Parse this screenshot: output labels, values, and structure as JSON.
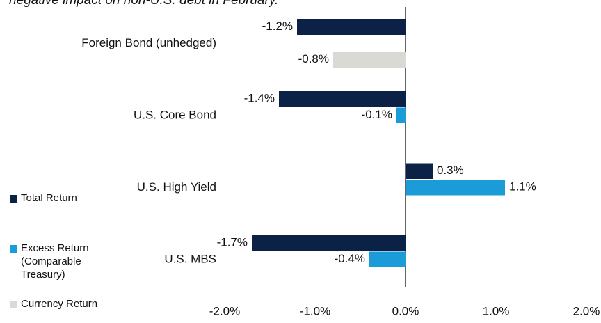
{
  "chart_data": {
    "type": "hbar",
    "title": "negative impact on non-U.S. debt in February.",
    "categories": [
      "Foreign Bond (unhedged)",
      "U.S. Core Bond",
      "U.S. High Yield",
      "U.S. MBS"
    ],
    "series": [
      {
        "name": "Total Return",
        "color": "#0c2146",
        "values": [
          -1.2,
          -1.4,
          0.3,
          -1.7
        ],
        "value_labels": [
          "-1.2%",
          "-1.4%",
          "0.3%",
          "-1.7%"
        ]
      },
      {
        "name": "Excess Return (Comparable Treasury)",
        "color": "#1b9bd8",
        "values": [
          null,
          -0.1,
          1.1,
          -0.4
        ],
        "value_labels": [
          null,
          "-0.1%",
          "1.1%",
          "-0.4%"
        ]
      },
      {
        "name": "Currency Return",
        "color": "#d9d9d6",
        "values": [
          -0.8,
          null,
          null,
          null
        ],
        "value_labels": [
          "-0.8%",
          null,
          null,
          null
        ]
      }
    ],
    "xlim": [
      -2,
      2
    ],
    "xticks": [
      {
        "value": -2,
        "label": "-2.0%"
      },
      {
        "value": -1,
        "label": "-1.0%"
      },
      {
        "value": 0,
        "label": "0.0%"
      },
      {
        "value": 1,
        "label": "1.0%"
      },
      {
        "value": 2,
        "label": "2.0%"
      }
    ],
    "legend": "left"
  }
}
